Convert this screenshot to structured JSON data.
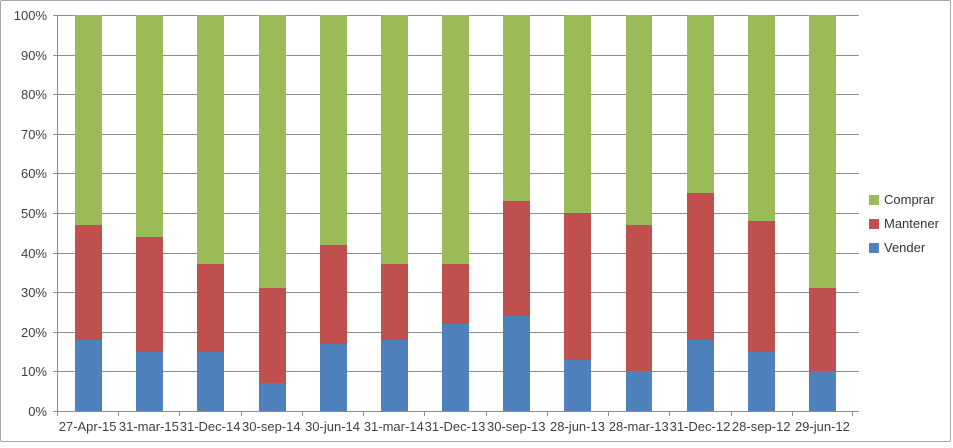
{
  "chart_data": {
    "type": "bar",
    "variant": "stacked-100-percent",
    "title": "",
    "xlabel": "",
    "ylabel": "",
    "categories": [
      "27-Apr-15",
      "31-mar-15",
      "31-Dec-14",
      "30-sep-14",
      "30-jun-14",
      "31-mar-14",
      "31-Dec-13",
      "30-sep-13",
      "28-jun-13",
      "28-mar-13",
      "31-Dec-12",
      "28-sep-12",
      "29-jun-12"
    ],
    "series": [
      {
        "name": "Vender",
        "color": "#4F81BD",
        "values": [
          18,
          15,
          15,
          7,
          17,
          18,
          22,
          24,
          13,
          10,
          18,
          15,
          10
        ]
      },
      {
        "name": "Mantener",
        "color": "#C0504D",
        "values": [
          29,
          29,
          22,
          24,
          25,
          19,
          15,
          29,
          37,
          37,
          37,
          33,
          21
        ]
      },
      {
        "name": "Comprar",
        "color": "#9BBB59",
        "values": [
          53,
          56,
          63,
          69,
          58,
          63,
          63,
          47,
          50,
          53,
          45,
          52,
          69
        ]
      }
    ],
    "y_axis": {
      "min": 0,
      "max": 100,
      "step": 10,
      "format": "percent",
      "tick_labels": [
        "0%",
        "10%",
        "20%",
        "30%",
        "40%",
        "50%",
        "60%",
        "70%",
        "80%",
        "90%",
        "100%"
      ]
    },
    "legend": {
      "position": "right",
      "items": [
        {
          "label": "Comprar",
          "color": "#9BBB59"
        },
        {
          "label": "Mantener",
          "color": "#C0504D"
        },
        {
          "label": "Vender",
          "color": "#4F81BD"
        }
      ]
    },
    "grid": true
  },
  "colors": {
    "gridline": "#8C8C8C",
    "axis": "#8C8C8C",
    "label_text": "#3F3F3F",
    "legend_text": "#333333",
    "frame_border": "#A6A6A6",
    "background": "#FFFFFF"
  }
}
